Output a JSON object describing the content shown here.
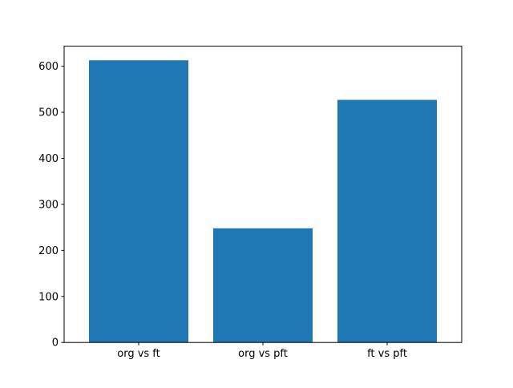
{
  "chart_data": {
    "type": "bar",
    "categories": [
      "org vs ft",
      "org vs pft",
      "ft vs pft"
    ],
    "values": [
      613,
      248,
      527
    ],
    "yticks": [
      0,
      100,
      200,
      300,
      400,
      500,
      600
    ],
    "ytick_labels": [
      "0",
      "100",
      "200",
      "300",
      "400",
      "500",
      "600"
    ],
    "ylim": [
      0,
      643.65
    ],
    "xlabel": "",
    "ylabel": "",
    "grid": false,
    "legend": null,
    "bar_color": "#1f77b4",
    "bar_width_fraction": 0.8,
    "background_color": "#ffffff",
    "frame_color": "#000000",
    "text_color": "#000000",
    "tick_font_size_px": 13
  }
}
